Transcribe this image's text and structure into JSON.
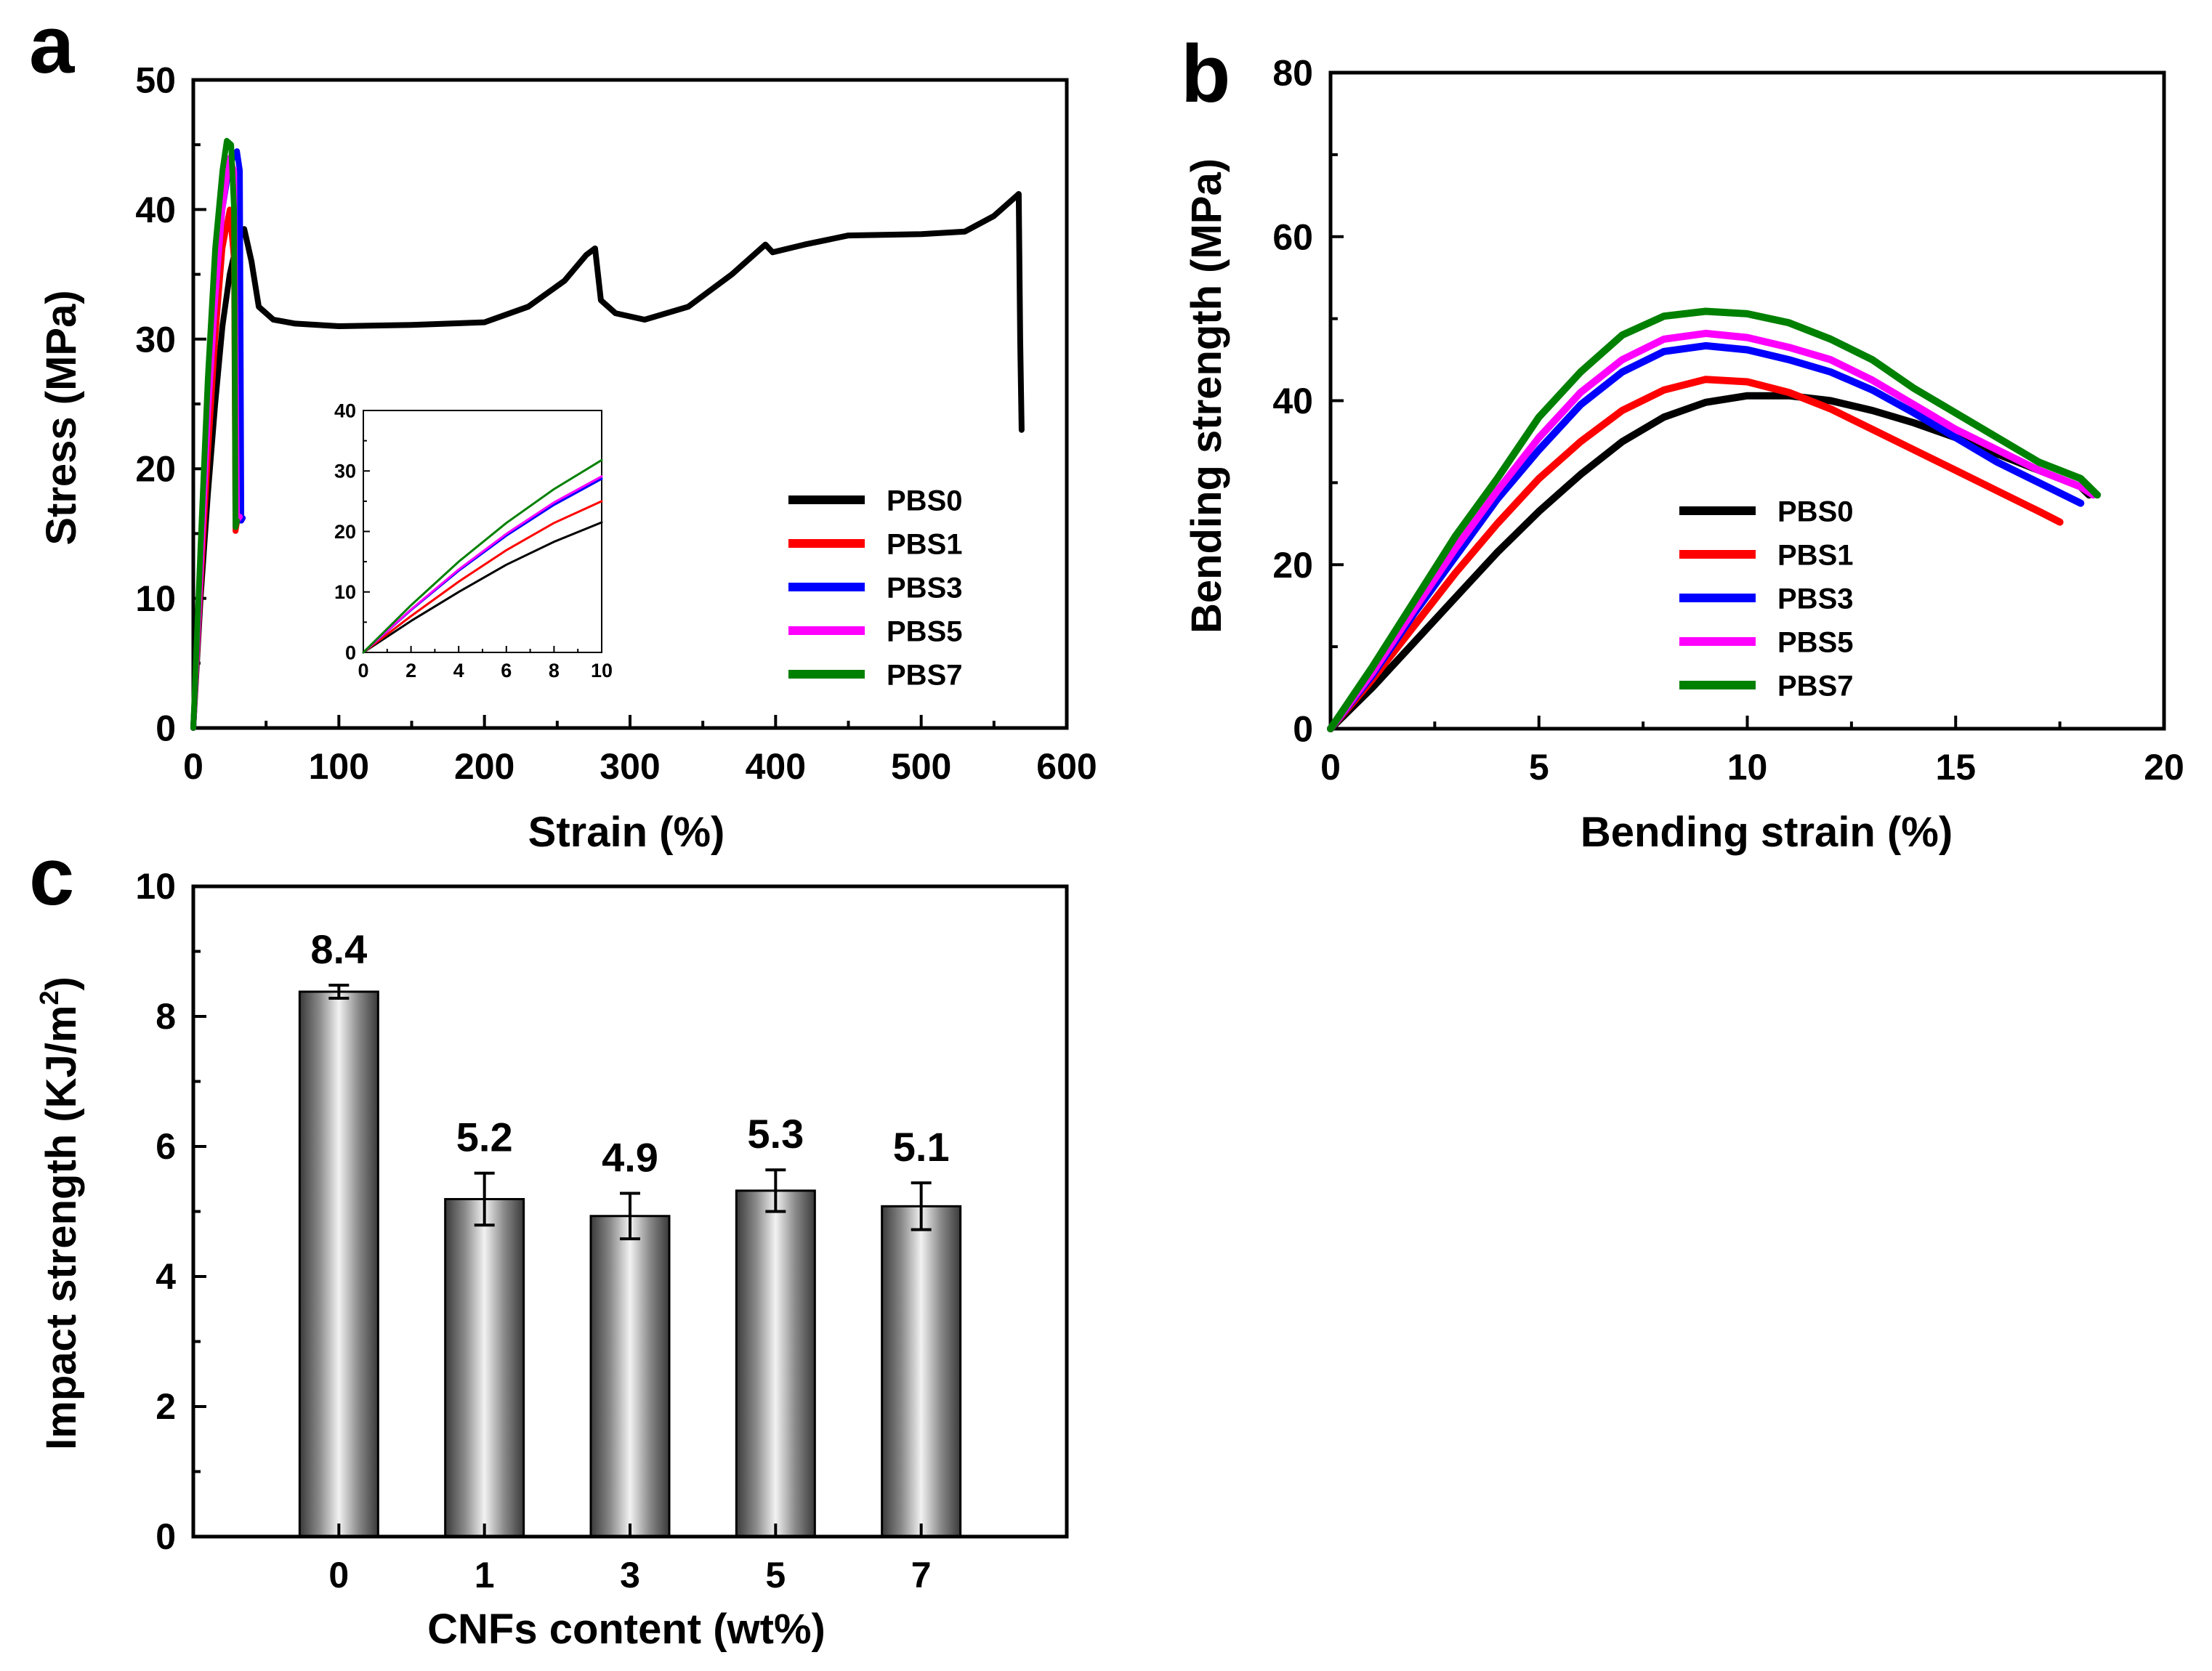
{
  "figure": {
    "panel_a": "a",
    "panel_b": "b",
    "panel_c": "c"
  },
  "colors": {
    "PBS0": "#000000",
    "PBS1": "#ff0000",
    "PBS3": "#0000ff",
    "PBS5": "#ff00ff",
    "PBS7": "#008000"
  },
  "chart_data": [
    {
      "id": "a",
      "type": "line",
      "title": "",
      "xlabel": "Strain (%)",
      "ylabel": "Stress (MPa)",
      "xlim": [
        0,
        600
      ],
      "ylim": [
        0,
        50
      ],
      "xticks": [
        "0",
        "100",
        "200",
        "300",
        "400",
        "500",
        "600"
      ],
      "yticks": [
        "0",
        "10",
        "20",
        "30",
        "40",
        "50"
      ],
      "legend": [
        "PBS0",
        "PBS1",
        "PBS3",
        "PBS5",
        "PBS7"
      ],
      "legend_position": "bottom-right",
      "series": [
        {
          "name": "PBS0",
          "points": [
            [
              0,
              0
            ],
            [
              5,
              10
            ],
            [
              10,
              18
            ],
            [
              15,
              25
            ],
            [
              20,
              31
            ],
            [
              25,
              35
            ],
            [
              30,
              37.5
            ],
            [
              35,
              38.5
            ],
            [
              40,
              36
            ],
            [
              45,
              32.5
            ],
            [
              55,
              31.5
            ],
            [
              70,
              31.2
            ],
            [
              100,
              31
            ],
            [
              150,
              31.1
            ],
            [
              200,
              31.3
            ],
            [
              230,
              32.5
            ],
            [
              255,
              34.5
            ],
            [
              270,
              36.5
            ],
            [
              276,
              37
            ],
            [
              280,
              33
            ],
            [
              290,
              32
            ],
            [
              310,
              31.5
            ],
            [
              340,
              32.5
            ],
            [
              370,
              35
            ],
            [
              393,
              37.3
            ],
            [
              398,
              36.7
            ],
            [
              420,
              37.3
            ],
            [
              450,
              38
            ],
            [
              500,
              38.1
            ],
            [
              530,
              38.3
            ],
            [
              550,
              39.5
            ],
            [
              565,
              41
            ],
            [
              567,
              41.2
            ],
            [
              568,
              30
            ],
            [
              569,
              23
            ]
          ]
        },
        {
          "name": "PBS1",
          "points": [
            [
              0,
              0
            ],
            [
              5,
              11
            ],
            [
              10,
              21
            ],
            [
              15,
              30
            ],
            [
              20,
              37
            ],
            [
              25,
              40
            ],
            [
              28,
              36
            ],
            [
              29,
              15.2
            ],
            [
              31,
              16.5
            ],
            [
              33,
              16
            ]
          ]
        },
        {
          "name": "PBS3",
          "points": [
            [
              0,
              0
            ],
            [
              5,
              12
            ],
            [
              10,
              24
            ],
            [
              15,
              33
            ],
            [
              20,
              40
            ],
            [
              25,
              43.5
            ],
            [
              30,
              44.5
            ],
            [
              32,
              43
            ],
            [
              33,
              16
            ],
            [
              34,
              16.2
            ]
          ]
        },
        {
          "name": "PBS5",
          "points": [
            [
              0,
              0
            ],
            [
              5,
              12
            ],
            [
              10,
              24
            ],
            [
              15,
              33
            ],
            [
              20,
              40
            ],
            [
              25,
              44
            ],
            [
              28,
              43
            ],
            [
              30,
              16
            ],
            [
              32,
              16.3
            ]
          ]
        },
        {
          "name": "PBS7",
          "points": [
            [
              0,
              0
            ],
            [
              5,
              14
            ],
            [
              10,
              27
            ],
            [
              15,
              37
            ],
            [
              20,
              43
            ],
            [
              23,
              45.3
            ],
            [
              26,
              45
            ],
            [
              28,
              40
            ],
            [
              29,
              15.5
            ],
            [
              30,
              16
            ]
          ]
        }
      ],
      "inset": {
        "xlim": [
          0,
          10
        ],
        "ylim": [
          0,
          40
        ],
        "xticks": [
          "0",
          "2",
          "4",
          "6",
          "8",
          "10"
        ],
        "yticks": [
          "0",
          "10",
          "20",
          "30",
          "40"
        ],
        "series": [
          {
            "name": "PBS0",
            "points": [
              [
                0,
                0
              ],
              [
                2,
                5.2
              ],
              [
                4,
                10
              ],
              [
                6,
                14.5
              ],
              [
                8,
                18.3
              ],
              [
                10,
                21.5
              ]
            ]
          },
          {
            "name": "PBS1",
            "points": [
              [
                0,
                0
              ],
              [
                2,
                6
              ],
              [
                4,
                11.7
              ],
              [
                6,
                16.9
              ],
              [
                8,
                21.4
              ],
              [
                10,
                25
              ]
            ]
          },
          {
            "name": "PBS3",
            "points": [
              [
                0,
                0
              ],
              [
                2,
                7
              ],
              [
                4,
                13.5
              ],
              [
                6,
                19.3
              ],
              [
                8,
                24.4
              ],
              [
                10,
                28.7
              ]
            ]
          },
          {
            "name": "PBS5",
            "points": [
              [
                0,
                0
              ],
              [
                2,
                7.1
              ],
              [
                4,
                13.7
              ],
              [
                6,
                19.6
              ],
              [
                8,
                24.8
              ],
              [
                10,
                29.1
              ]
            ]
          },
          {
            "name": "PBS7",
            "points": [
              [
                0,
                0
              ],
              [
                2,
                7.8
              ],
              [
                4,
                15
              ],
              [
                6,
                21.4
              ],
              [
                8,
                27
              ],
              [
                10,
                31.8
              ]
            ]
          }
        ]
      }
    },
    {
      "id": "b",
      "type": "line",
      "title": "",
      "xlabel": "Bending strain (%)",
      "ylabel": "Bending strength (MPa)",
      "xlim": [
        0,
        20
      ],
      "ylim": [
        0,
        80
      ],
      "xticks": [
        "0",
        "5",
        "10",
        "15",
        "20"
      ],
      "yticks": [
        "0",
        "20",
        "40",
        "60",
        "80"
      ],
      "legend": [
        "PBS0",
        "PBS1",
        "PBS3",
        "PBS5",
        "PBS7"
      ],
      "legend_position": "bottom-center",
      "series": [
        {
          "name": "PBS0",
          "points": [
            [
              0,
              0
            ],
            [
              1,
              5
            ],
            [
              2,
              10.5
            ],
            [
              3,
              16
            ],
            [
              4,
              21.5
            ],
            [
              5,
              26.5
            ],
            [
              6,
              31
            ],
            [
              7,
              35
            ],
            [
              8,
              38
            ],
            [
              9,
              39.8
            ],
            [
              10,
              40.6
            ],
            [
              11,
              40.6
            ],
            [
              12,
              40
            ],
            [
              13,
              38.8
            ],
            [
              14,
              37.3
            ],
            [
              15,
              35.5
            ],
            [
              16,
              33.5
            ],
            [
              17,
              31.5
            ],
            [
              18,
              29.5
            ],
            [
              18.2,
              28.5
            ]
          ]
        },
        {
          "name": "PBS1",
          "points": [
            [
              0,
              0
            ],
            [
              1,
              6
            ],
            [
              2,
              12.5
            ],
            [
              3,
              19
            ],
            [
              4,
              25
            ],
            [
              5,
              30.5
            ],
            [
              6,
              35
            ],
            [
              7,
              38.8
            ],
            [
              8,
              41.3
            ],
            [
              9,
              42.6
            ],
            [
              10,
              42.3
            ],
            [
              11,
              41
            ],
            [
              12,
              39
            ],
            [
              13,
              36.5
            ],
            [
              14,
              34
            ],
            [
              15,
              31.5
            ],
            [
              16,
              29
            ],
            [
              17,
              26.5
            ],
            [
              17.5,
              25.2
            ]
          ]
        },
        {
          "name": "PBS3",
          "points": [
            [
              0,
              0
            ],
            [
              1,
              6.5
            ],
            [
              2,
              14
            ],
            [
              3,
              21
            ],
            [
              4,
              28
            ],
            [
              5,
              34
            ],
            [
              6,
              39.5
            ],
            [
              7,
              43.5
            ],
            [
              8,
              46
            ],
            [
              9,
              46.7
            ],
            [
              10,
              46.2
            ],
            [
              11,
              45
            ],
            [
              12,
              43.5
            ],
            [
              13,
              41.3
            ],
            [
              14,
              38.5
            ],
            [
              15,
              35.5
            ],
            [
              16,
              32.5
            ],
            [
              17,
              30
            ],
            [
              18,
              27.5
            ]
          ]
        },
        {
          "name": "PBS5",
          "points": [
            [
              0,
              0
            ],
            [
              1,
              6.8
            ],
            [
              2,
              14.5
            ],
            [
              3,
              22
            ],
            [
              4,
              29
            ],
            [
              5,
              35.5
            ],
            [
              6,
              41
            ],
            [
              7,
              45
            ],
            [
              8,
              47.5
            ],
            [
              9,
              48.2
            ],
            [
              10,
              47.7
            ],
            [
              11,
              46.5
            ],
            [
              12,
              45
            ],
            [
              13,
              42.5
            ],
            [
              14,
              39.5
            ],
            [
              15,
              36.5
            ],
            [
              16,
              34
            ],
            [
              17,
              31.5
            ],
            [
              18,
              29.5
            ],
            [
              18.3,
              28.5
            ]
          ]
        },
        {
          "name": "PBS7",
          "points": [
            [
              0,
              0
            ],
            [
              1,
              7.5
            ],
            [
              2,
              15.5
            ],
            [
              3,
              23.5
            ],
            [
              4,
              30.5
            ],
            [
              5,
              38
            ],
            [
              6,
              43.5
            ],
            [
              7,
              48
            ],
            [
              8,
              50.3
            ],
            [
              9,
              50.9
            ],
            [
              10,
              50.6
            ],
            [
              11,
              49.5
            ],
            [
              12,
              47.5
            ],
            [
              13,
              45
            ],
            [
              14,
              41.5
            ],
            [
              15,
              38.5
            ],
            [
              16,
              35.5
            ],
            [
              17,
              32.5
            ],
            [
              18,
              30.5
            ],
            [
              18.4,
              28.5
            ]
          ]
        }
      ]
    },
    {
      "id": "c",
      "type": "bar",
      "title": "",
      "xlabel": "CNFs content (wt%)",
      "ylabel_main": "Impact strength (KJ/m",
      "ylabel_sup": "2",
      "ylabel_close": ")",
      "ylim": [
        0,
        10
      ],
      "yticks": [
        "0",
        "2",
        "4",
        "6",
        "8",
        "10"
      ],
      "categories": [
        "0",
        "1",
        "3",
        "5",
        "7"
      ],
      "values": [
        8.38,
        5.19,
        4.93,
        5.32,
        5.08
      ],
      "errors": [
        0.1,
        0.4,
        0.35,
        0.32,
        0.36
      ],
      "data_labels": [
        "8.4",
        "5.2",
        "4.9",
        "5.3",
        "5.1"
      ]
    }
  ]
}
